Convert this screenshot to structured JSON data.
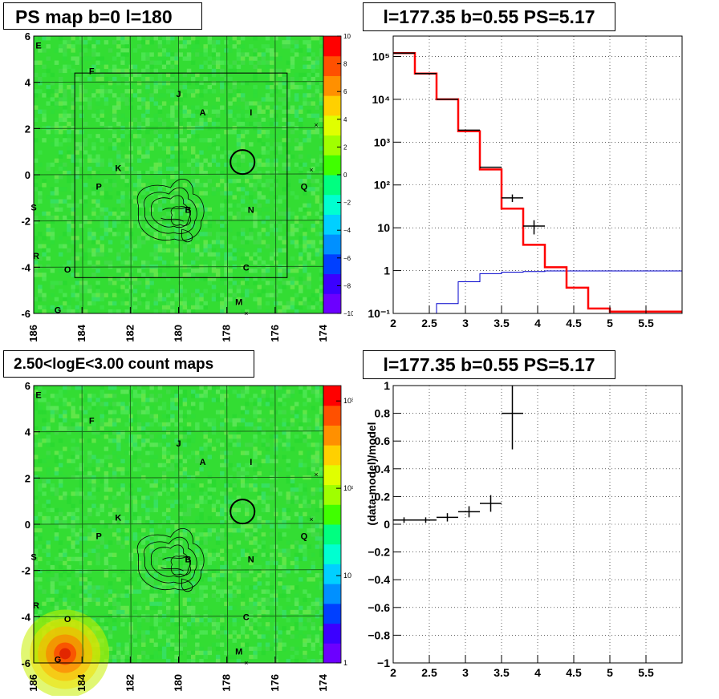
{
  "colors": {
    "data": "#000000",
    "model": "#ff0000",
    "background_model": "#0000cc",
    "map_bg": "#33dd33",
    "contour": "#000000"
  },
  "sky_maps": [
    {
      "title": "PS map b=0 l=180",
      "x_ticks": [
        "186",
        "184",
        "182",
        "180",
        "178",
        "176",
        "174"
      ],
      "y_ticks": [
        "6",
        "4",
        "2",
        "0",
        "-2",
        "-4",
        "-6"
      ],
      "colorbar_labels": [
        "10",
        "8",
        "6",
        "4",
        "2",
        "0",
        "−2",
        "−4",
        "−6",
        "−8",
        "−10"
      ],
      "colorbar_scale": "linear",
      "colorbar_range": [
        -10,
        10
      ],
      "source_labels": [
        "E",
        "F",
        "J",
        "A",
        "I",
        "K",
        "P",
        "Q",
        "S",
        "B",
        "N",
        "R",
        "O",
        "C",
        "M",
        "G"
      ],
      "roi_box_l": [
        184.3,
        175.5
      ],
      "roi_box_b": [
        -4.45,
        4.4
      ],
      "circle_center": [
        177.35,
        0.55
      ],
      "circle_radius_deg": 0.5,
      "hotspot": null
    },
    {
      "title": "2.50<logE<3.00 count maps",
      "x_ticks": [
        "186",
        "184",
        "182",
        "180",
        "178",
        "176",
        "174"
      ],
      "y_ticks": [
        "6",
        "4",
        "2",
        "0",
        "-2",
        "-4",
        "-6"
      ],
      "colorbar_labels": [
        "10³",
        "10²",
        "10",
        "1"
      ],
      "colorbar_scale": "log",
      "colorbar_range": [
        1,
        1500
      ],
      "source_labels": [
        "E",
        "F",
        "J",
        "A",
        "I",
        "K",
        "P",
        "Q",
        "S",
        "B",
        "N",
        "R",
        "O",
        "C",
        "M",
        "G"
      ],
      "roi_box_l": null,
      "roi_box_b": null,
      "circle_center": [
        177.35,
        0.55
      ],
      "circle_radius_deg": 0.5,
      "hotspot": [
        184.7,
        -5.6
      ]
    }
  ],
  "chart_data": [
    {
      "type": "line",
      "title": "l=177.35 b=0.55 PS=5.17",
      "xlabel": "",
      "ylabel": "",
      "xlim": [
        2,
        6
      ],
      "ylim": [
        0.1,
        300000
      ],
      "yscale": "log",
      "x_ticks": [
        "2",
        "2.5",
        "3",
        "3.5",
        "4",
        "4.5",
        "5",
        "5.5"
      ],
      "y_ticks": [
        "10⁻¹",
        "1",
        "10",
        "10²",
        "10³",
        "10⁴",
        "10⁵"
      ],
      "grid": true,
      "data_points": [
        {
          "x": 2.15,
          "xerr": 0.15,
          "y": 120000
        },
        {
          "x": 2.45,
          "xerr": 0.15,
          "y": 40000
        },
        {
          "x": 2.75,
          "xerr": 0.15,
          "y": 10000
        },
        {
          "x": 3.05,
          "xerr": 0.15,
          "y": 1900
        },
        {
          "x": 3.35,
          "xerr": 0.15,
          "y": 260
        },
        {
          "x": 3.65,
          "xerr": 0.15,
          "y": 50,
          "ylo": 40,
          "yhi": 60
        },
        {
          "x": 3.95,
          "xerr": 0.15,
          "y": 11,
          "ylo": 7,
          "yhi": 15
        }
      ],
      "model_steps": {
        "edges": [
          2,
          2.3,
          2.6,
          2.9,
          3.2,
          3.5,
          3.8,
          4.1,
          4.4,
          4.7,
          5,
          6
        ],
        "values": [
          120000,
          40000,
          10000,
          1800,
          230,
          28,
          4,
          1.2,
          0.4,
          0.13,
          0.11
        ]
      },
      "background_steps": {
        "edges": [
          2.6,
          2.9,
          3.2,
          3.5,
          3.8,
          4.1,
          6
        ],
        "values": [
          0.17,
          0.55,
          0.85,
          0.92,
          0.95,
          0.98
        ]
      }
    },
    {
      "type": "scatter",
      "title": "l=177.35 b=0.55 PS=5.17",
      "xlabel": "",
      "ylabel": "(data-model)/model",
      "xlim": [
        2,
        6
      ],
      "ylim": [
        -1,
        1
      ],
      "x_ticks": [
        "2",
        "2.5",
        "3",
        "3.5",
        "4",
        "4.5",
        "5",
        "5.5"
      ],
      "y_ticks": [
        "1",
        "0.8",
        "0.6",
        "0.4",
        "0.2",
        "0",
        "−0.2",
        "−0.4",
        "−0.6",
        "−0.8",
        "−1"
      ],
      "grid": true,
      "points": [
        {
          "x": 2.15,
          "xerr": 0.15,
          "y": 0.03,
          "yerr": 0.02
        },
        {
          "x": 2.45,
          "xerr": 0.15,
          "y": 0.03,
          "yerr": 0.02
        },
        {
          "x": 2.75,
          "xerr": 0.15,
          "y": 0.05,
          "yerr": 0.03
        },
        {
          "x": 3.05,
          "xerr": 0.15,
          "y": 0.09,
          "yerr": 0.04
        },
        {
          "x": 3.35,
          "xerr": 0.15,
          "y": 0.15,
          "yerr": 0.06
        },
        {
          "x": 3.65,
          "xerr": 0.15,
          "y": 0.8,
          "yerr": 0.26
        }
      ]
    }
  ]
}
